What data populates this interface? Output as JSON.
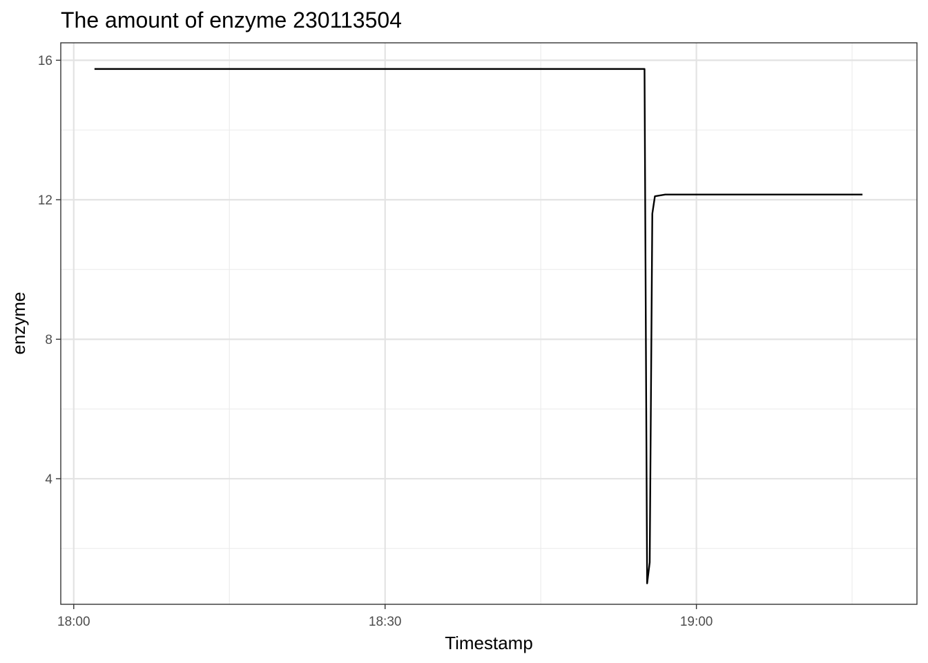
{
  "chart_data": {
    "type": "line",
    "title": "The amount of enzyme 230113504",
    "xlabel": "Timestamp",
    "ylabel": "enzyme",
    "x_type": "time",
    "xlim": [
      "18:00",
      "19:20"
    ],
    "ylim": [
      0.4,
      16.5
    ],
    "x_ticks": [
      "18:00",
      "18:30",
      "19:00"
    ],
    "y_ticks": [
      4,
      8,
      12,
      16
    ],
    "grid": true,
    "series": [
      {
        "x": [
          "18:02",
          "18:10",
          "18:20",
          "18:30",
          "18:40",
          "18:50",
          "18:55",
          "18:55:15",
          "18:55:30",
          "18:55:45",
          "18:56",
          "18:57",
          "19:00",
          "19:10",
          "19:16"
        ],
        "values": [
          15.75,
          15.75,
          15.75,
          15.75,
          15.75,
          15.75,
          15.75,
          1.0,
          1.6,
          11.6,
          12.1,
          12.15,
          12.15,
          12.15,
          12.15
        ]
      }
    ]
  }
}
